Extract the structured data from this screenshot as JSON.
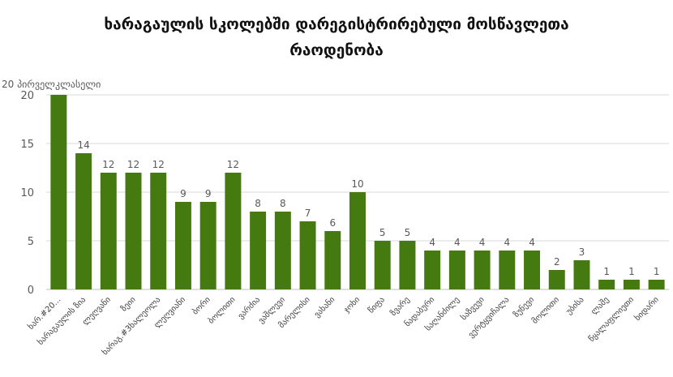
{
  "chart_data": {
    "type": "bar",
    "title_line1": "ხარაგაულის სკოლებში დარეგისტრირებული მოსწავლეთა",
    "title_line2": "რაოდენობა",
    "ylabel": "20 პირველკლასელი",
    "ylim": [
      0,
      20
    ],
    "yticks": [
      0,
      5,
      10,
      15,
      20
    ],
    "grid": true,
    "bar_color": "#457a10",
    "categories": [
      "ხარ.#20...",
      "ხარაგაულის ზია",
      "ლეღვანი",
      "ზეიი",
      "ხარაგ.#3ხალეოლა",
      "ლეღვიანი",
      "ბორი",
      "ბოლითი",
      "ვარძია",
      "ვაშლევი",
      "მარელისი",
      "ვახანი",
      "ჯოხი",
      "წიფა",
      "ზვარე",
      "ნადაბური",
      "საღანძილე",
      "საზვევი",
      "ვერტყვიჩალა",
      "ზუნევი",
      "მოლითი",
      "უბისა",
      "ლაშე",
      "წყალაფლიეთი",
      "ხიდარი"
    ],
    "values": [
      20,
      14,
      12,
      12,
      12,
      9,
      9,
      12,
      8,
      8,
      7,
      6,
      10,
      5,
      5,
      4,
      4,
      4,
      4,
      4,
      2,
      3,
      1,
      1,
      1
    ]
  }
}
